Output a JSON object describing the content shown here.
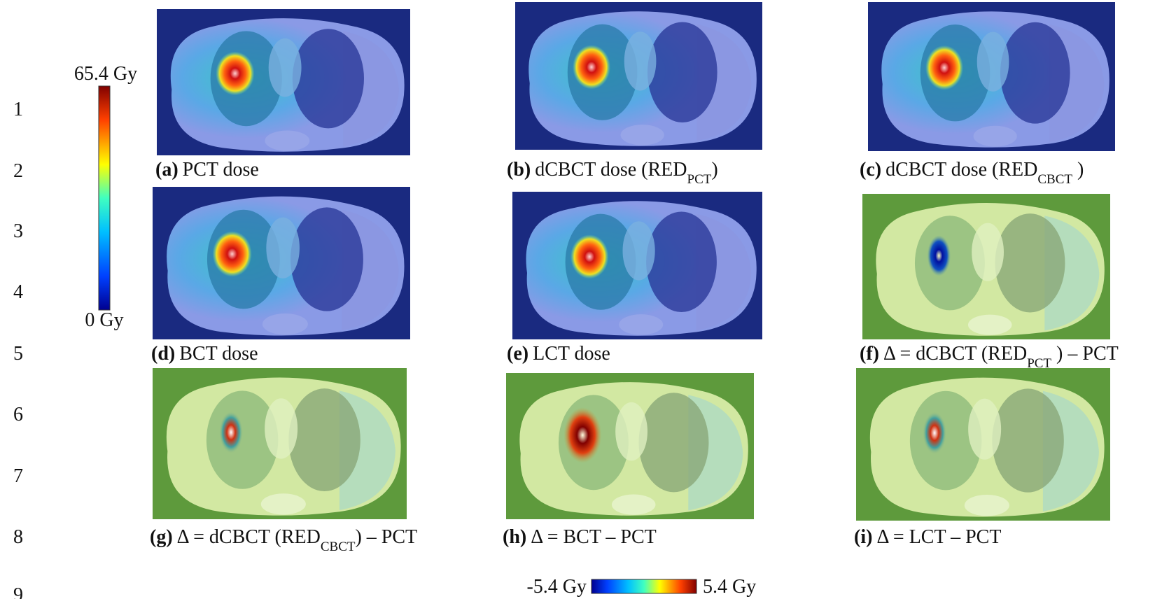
{
  "line_numbers": [
    "1",
    "2",
    "3",
    "4",
    "5",
    "6",
    "7",
    "8",
    "9"
  ],
  "dose_colorbar": {
    "max_label": "65.4 Gy",
    "min_label": "0 Gy"
  },
  "diff_colorbar": {
    "min_label": "-5.4 Gy",
    "max_label": "5.4 Gy"
  },
  "panels": [
    {
      "letter": "(a)",
      "text": "PCT dose"
    },
    {
      "letter": "(b)",
      "text": "dCBCT dose (RED",
      "sub": "PCT",
      "tail": ")"
    },
    {
      "letter": "(c)",
      "text": "dCBCT dose (RED",
      "sub": "CBCT",
      "tail": " )"
    },
    {
      "letter": "(d)",
      "text": "BCT dose"
    },
    {
      "letter": "(e)",
      "text": "LCT dose"
    },
    {
      "letter": "(f)",
      "text": "Δ = dCBCT (RED",
      "sub": "PCT",
      "tail": " ) – PCT"
    },
    {
      "letter": "(g)",
      "text": "Δ = dCBCT (RED",
      "sub": "CBCT",
      "tail": ") – PCT"
    },
    {
      "letter": "(h)",
      "text": "Δ = BCT – PCT"
    },
    {
      "letter": "(i)",
      "text": "Δ = LCT – PCT"
    }
  ]
}
